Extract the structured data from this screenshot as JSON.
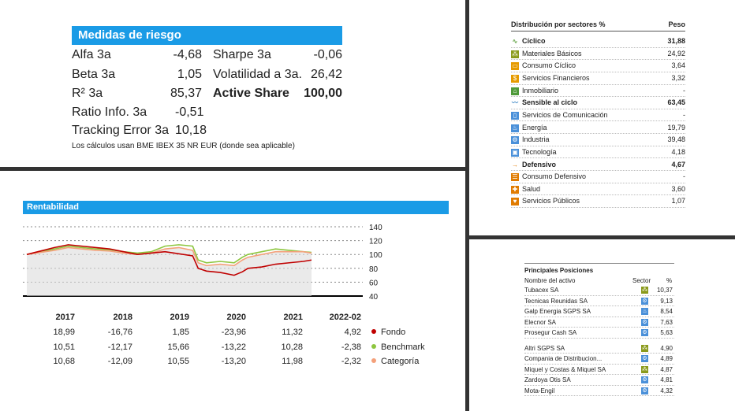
{
  "risk": {
    "title": "Medidas de riesgo",
    "left": [
      {
        "label": "Alfa 3a",
        "value": "-4,68"
      },
      {
        "label": "Beta 3a",
        "value": "1,05"
      },
      {
        "label": "R² 3a",
        "value": "85,37"
      },
      {
        "label": "Ratio Info. 3a",
        "value": "-0,51"
      },
      {
        "label": "Tracking Error 3a",
        "value": "10,18"
      }
    ],
    "right": [
      {
        "label": "Sharpe 3a",
        "value": "-0,06"
      },
      {
        "label": "Volatilidad a 3a.",
        "value": "26,42"
      },
      {
        "label": "Active Share",
        "value": "100,00"
      }
    ],
    "note": "Los cálculos usan BME IBEX 35 NR EUR (donde sea aplicable)"
  },
  "sectors": {
    "title": "Distribución por sectores %",
    "col": "Peso",
    "rows": [
      {
        "label": "Cíclico",
        "value": "31,88",
        "icon": "cyclical-icon",
        "color": "#6aa84f",
        "sym": "∿",
        "bold": true
      },
      {
        "label": "Materiales Básicos",
        "value": "24,92",
        "icon": "basic-materials-icon",
        "color": "#8a9a1b",
        "sym": "⁂"
      },
      {
        "label": "Consumo Cíclico",
        "value": "3,64",
        "icon": "consumer-cyclical-icon",
        "color": "#e69b00",
        "sym": "▭"
      },
      {
        "label": "Servicios Financieros",
        "value": "3,32",
        "icon": "financial-services-icon",
        "color": "#e69b00",
        "sym": "$"
      },
      {
        "label": "Inmobiliario",
        "value": "-",
        "icon": "real-estate-icon",
        "color": "#4f9a3a",
        "sym": "⌂"
      },
      {
        "label": "Sensible al ciclo",
        "value": "63,45",
        "icon": "sensitive-icon",
        "color": "#2f7fc1",
        "sym": "〰",
        "bold": true
      },
      {
        "label": "Servicios de Comunicación",
        "value": "-",
        "icon": "communication-icon",
        "color": "#4a90d9",
        "sym": "▯"
      },
      {
        "label": "Energía",
        "value": "19,79",
        "icon": "energy-icon",
        "color": "#4a90d9",
        "sym": "♨"
      },
      {
        "label": "Industria",
        "value": "39,48",
        "icon": "industrials-icon",
        "color": "#4a90d9",
        "sym": "⚙"
      },
      {
        "label": "Tecnología",
        "value": "4,18",
        "icon": "technology-icon",
        "color": "#4a90d9",
        "sym": "▣"
      },
      {
        "label": "Defensivo",
        "value": "4,67",
        "icon": "defensive-icon",
        "color": "#e07b00",
        "sym": "→",
        "bold": true
      },
      {
        "label": "Consumo Defensivo",
        "value": "-",
        "icon": "consumer-defensive-icon",
        "color": "#e07b00",
        "sym": "☰"
      },
      {
        "label": "Salud",
        "value": "3,60",
        "icon": "healthcare-icon",
        "color": "#e07b00",
        "sym": "✚"
      },
      {
        "label": "Servicios Públicos",
        "value": "1,07",
        "icon": "utilities-icon",
        "color": "#e07b00",
        "sym": "♥"
      }
    ]
  },
  "positions": {
    "title": "Principales Posiciones",
    "col_name": "Nombre del activo",
    "col_sector": "Sector",
    "col_pct": "%",
    "rows": [
      {
        "name": "Tubacex SA",
        "pct": "10,37",
        "icon": "basic-materials-icon",
        "color": "#8a9a1b",
        "sym": "⁂"
      },
      {
        "name": "Tecnicas Reunidas SA",
        "pct": "9,13",
        "icon": "industrials-icon",
        "color": "#4a90d9",
        "sym": "⚙"
      },
      {
        "name": "Galp Energia SGPS SA",
        "pct": "8,54",
        "icon": "energy-icon",
        "color": "#4a90d9",
        "sym": "♨"
      },
      {
        "name": "Elecnor SA",
        "pct": "7,63",
        "icon": "industrials-icon",
        "color": "#4a90d9",
        "sym": "⚙"
      },
      {
        "name": "Prosegur Cash SA",
        "pct": "5,63",
        "icon": "industrials-icon",
        "color": "#4a90d9",
        "sym": "⚙"
      },
      {
        "name": "Altri SGPS SA",
        "pct": "4,90",
        "icon": "basic-materials-icon",
        "color": "#8a9a1b",
        "sym": "⁂"
      },
      {
        "name": "Compania de Distribucion...",
        "pct": "4,89",
        "icon": "industrials-icon",
        "color": "#4a90d9",
        "sym": "⚙"
      },
      {
        "name": "Miquel y Costas & Miquel SA",
        "pct": "4,87",
        "icon": "basic-materials-icon",
        "color": "#8a9a1b",
        "sym": "⁂"
      },
      {
        "name": "Zardoya Otis SA",
        "pct": "4,81",
        "icon": "industrials-icon",
        "color": "#4a90d9",
        "sym": "⚙"
      },
      {
        "name": "Mota-Engil",
        "pct": "4,32",
        "icon": "industrials-icon",
        "color": "#4a90d9",
        "sym": "⚙"
      }
    ]
  },
  "returns": {
    "title": "Rentabilidad",
    "years": [
      "2017",
      "2018",
      "2019",
      "2020",
      "2021",
      "2022-02"
    ],
    "series": [
      {
        "name": "Fondo",
        "color": "#c00000",
        "values": [
          "18,99",
          "-16,76",
          "1,85",
          "-23,96",
          "11,32",
          "4,92"
        ]
      },
      {
        "name": "Benchmark",
        "color": "#8dc63f",
        "values": [
          "10,51",
          "-12,17",
          "15,66",
          "-13,22",
          "10,28",
          "-2,38"
        ]
      },
      {
        "name": "Categoría",
        "color": "#f4a07a",
        "values": [
          "10,68",
          "-12,09",
          "10,55",
          "-13,20",
          "11,98",
          "-2,32"
        ]
      }
    ]
  },
  "chart_data": {
    "type": "line",
    "title": "Rentabilidad",
    "ylim": [
      40,
      140
    ],
    "yticks": [
      "140",
      "120",
      "100",
      "80",
      "60",
      "40"
    ],
    "x": [
      2017.0,
      2017.25,
      2017.5,
      2017.75,
      2018.0,
      2018.25,
      2018.5,
      2018.75,
      2019.0,
      2019.25,
      2019.5,
      2019.75,
      2020.0,
      2020.1,
      2020.25,
      2020.5,
      2020.75,
      2020.9,
      2021.0,
      2021.25,
      2021.5,
      2021.75,
      2022.0,
      2022.15
    ],
    "series": [
      {
        "name": "Fondo",
        "color": "#c00000",
        "values": [
          100,
          105,
          110,
          114,
          112,
          110,
          108,
          104,
          100,
          102,
          104,
          101,
          98,
          80,
          76,
          74,
          70,
          75,
          80,
          82,
          86,
          88,
          90,
          92
        ]
      },
      {
        "name": "Benchmark",
        "color": "#8dc63f",
        "values": [
          100,
          104,
          108,
          112,
          110,
          108,
          107,
          104,
          102,
          104,
          112,
          114,
          112,
          92,
          88,
          90,
          88,
          96,
          100,
          104,
          108,
          106,
          104,
          103
        ]
      },
      {
        "name": "Categoría",
        "color": "#f4a07a",
        "values": [
          100,
          103,
          106,
          110,
          108,
          106,
          105,
          102,
          100,
          102,
          108,
          110,
          106,
          88,
          84,
          86,
          84,
          92,
          96,
          100,
          104,
          104,
          104,
          102
        ]
      }
    ]
  }
}
